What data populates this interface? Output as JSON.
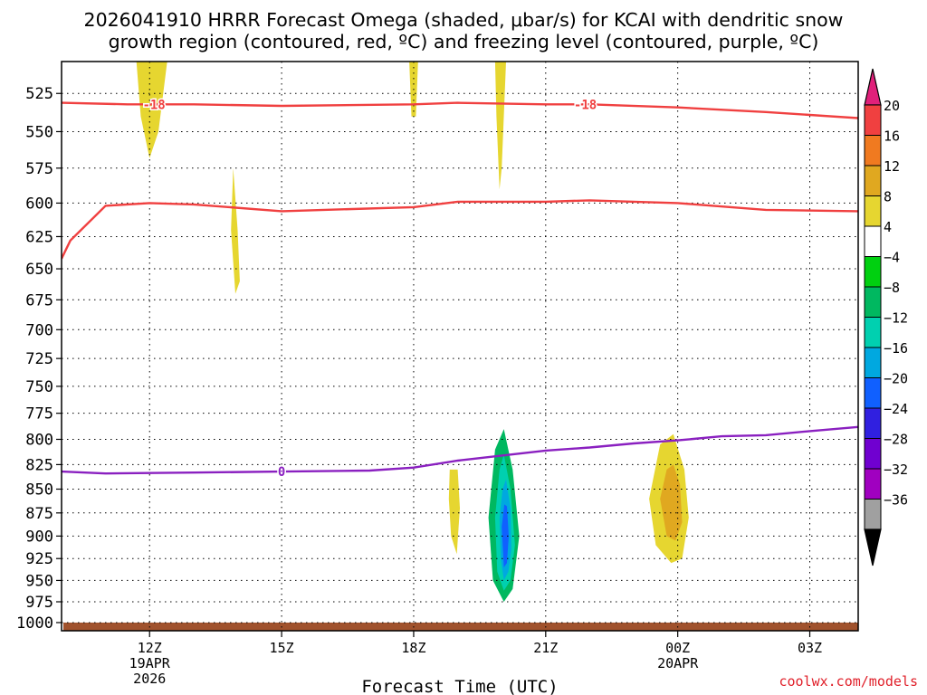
{
  "chart_data": {
    "type": "heatmap",
    "title": "2026041910 HRRR Forecast Omega (shaded, μbar/s) for KCAI with dendritic snow",
    "subtitle": "growth region (contoured, red, ºC) and freezing level (contoured, purple, ºC)",
    "xlabel": "Forecast Time (UTC)",
    "ylabel": "",
    "x_ticks": [
      {
        "hour": 12,
        "label": "12Z",
        "sub1": "19APR",
        "sub2": "2026"
      },
      {
        "hour": 15,
        "label": "15Z",
        "sub1": "",
        "sub2": ""
      },
      {
        "hour": 18,
        "label": "18Z",
        "sub1": "",
        "sub2": ""
      },
      {
        "hour": 21,
        "label": "21Z",
        "sub1": "",
        "sub2": ""
      },
      {
        "hour": 24,
        "label": "00Z",
        "sub1": "20APR",
        "sub2": ""
      },
      {
        "hour": 27,
        "label": "03Z",
        "sub1": "",
        "sub2": ""
      }
    ],
    "xlim": [
      10,
      28.1
    ],
    "y_ticks": [
      525,
      550,
      575,
      600,
      625,
      650,
      675,
      700,
      725,
      750,
      775,
      800,
      825,
      850,
      875,
      900,
      925,
      950,
      975,
      1000
    ],
    "ylim_hpa": [
      505,
      1010
    ],
    "colorbar": {
      "levels": [
        -36,
        -32,
        -28,
        -24,
        -20,
        -16,
        -12,
        -8,
        -4,
        4,
        8,
        12,
        16,
        20
      ],
      "colors": [
        "#a0a0a0",
        "#a000c0",
        "#7000d0",
        "#3020e0",
        "#1060ff",
        "#00a8e0",
        "#00d0b0",
        "#00b860",
        "#00d010",
        "#ffffff",
        "#e6d630",
        "#e0a820",
        "#f07a20",
        "#f04040",
        "#e0207a"
      ],
      "under_color": "#000000",
      "over_color": "#e0207a"
    },
    "dgz_contours": [
      {
        "name": "-18 C",
        "color": "#f04040",
        "label": "-18",
        "points": [
          [
            10,
            531
          ],
          [
            11.5,
            532
          ],
          [
            13,
            532
          ],
          [
            15,
            533
          ],
          [
            18,
            532
          ],
          [
            19,
            531
          ],
          [
            21,
            532
          ],
          [
            22,
            532
          ],
          [
            24,
            534
          ],
          [
            26,
            537
          ],
          [
            28.1,
            541
          ]
        ]
      },
      {
        "name": "-12 C",
        "color": "#f04040",
        "label": "",
        "points": [
          [
            10,
            642
          ],
          [
            10.2,
            628
          ],
          [
            11.0,
            602
          ],
          [
            12,
            600
          ],
          [
            13,
            601
          ],
          [
            15,
            606
          ],
          [
            18,
            603
          ],
          [
            19,
            599
          ],
          [
            21,
            599
          ],
          [
            22,
            598
          ],
          [
            24,
            600
          ],
          [
            26,
            605
          ],
          [
            28.1,
            606
          ]
        ]
      }
    ],
    "freezing_level": {
      "name": "0 C",
      "color": "#8a20c0",
      "label": "0",
      "points": [
        [
          10,
          832
        ],
        [
          11,
          834
        ],
        [
          13,
          833
        ],
        [
          15,
          832
        ],
        [
          17,
          831
        ],
        [
          18,
          828
        ],
        [
          19,
          821
        ],
        [
          20,
          816
        ],
        [
          21,
          811
        ],
        [
          22,
          808
        ],
        [
          23,
          804
        ],
        [
          24,
          801
        ],
        [
          25,
          797
        ],
        [
          26,
          796
        ],
        [
          27,
          792
        ],
        [
          28.1,
          788
        ]
      ]
    },
    "omega_regions": [
      {
        "name": "yellow-12Z-upper",
        "level": 4,
        "points": [
          [
            11.2,
            505
          ],
          [
            13.6,
            505
          ],
          [
            13.0,
            570
          ],
          [
            12.5,
            630
          ],
          [
            12.0,
            640
          ],
          [
            11.4,
            580
          ]
        ]
      },
      {
        "name": "orange-12Z-upper",
        "level": 8,
        "points": [
          [
            11.7,
            505
          ],
          [
            12.4,
            505
          ],
          [
            12.2,
            550
          ],
          [
            12.0,
            568
          ],
          [
            11.8,
            540
          ]
        ]
      },
      {
        "name": "yellow-13Z-column",
        "level": 4,
        "points": [
          [
            13.5,
            505
          ],
          [
            15.0,
            505
          ],
          [
            14.7,
            600
          ],
          [
            14.4,
            690
          ],
          [
            14.0,
            738
          ],
          [
            13.8,
            710
          ],
          [
            13.6,
            640
          ]
        ]
      },
      {
        "name": "orange-14Z-streak",
        "level": 8,
        "points": [
          [
            13.9,
            575
          ],
          [
            14.0,
            620
          ],
          [
            14.05,
            660
          ],
          [
            13.95,
            670
          ],
          [
            13.85,
            620
          ]
        ]
      },
      {
        "name": "yellow-18Z-column",
        "level": 4,
        "points": [
          [
            17.3,
            505
          ],
          [
            18.4,
            505
          ],
          [
            18.3,
            580
          ],
          [
            18.0,
            650
          ],
          [
            17.5,
            620
          ]
        ]
      },
      {
        "name": "orange-18Z-streak",
        "level": 8,
        "points": [
          [
            17.9,
            505
          ],
          [
            18.1,
            505
          ],
          [
            18.05,
            540
          ],
          [
            17.95,
            540
          ]
        ]
      },
      {
        "name": "green-19Z-streak",
        "level": -4,
        "points": [
          [
            18.93,
            505
          ],
          [
            19.07,
            505
          ],
          [
            19.06,
            600
          ],
          [
            19.0,
            668
          ],
          [
            18.94,
            600
          ]
        ]
      },
      {
        "name": "yellow-20Z-column",
        "level": 4,
        "points": [
          [
            19.6,
            505
          ],
          [
            21.1,
            505
          ],
          [
            21.1,
            520
          ],
          [
            21.05,
            570
          ],
          [
            20.9,
            640
          ],
          [
            20.5,
            690
          ],
          [
            20.1,
            700
          ],
          [
            19.8,
            650
          ],
          [
            19.7,
            580
          ]
        ]
      },
      {
        "name": "orange-20Z-streak",
        "level": 8,
        "points": [
          [
            19.85,
            505
          ],
          [
            20.1,
            505
          ],
          [
            20.0,
            575
          ],
          [
            19.95,
            590
          ],
          [
            19.88,
            540
          ]
        ]
      },
      {
        "name": "yellow-22Z-column",
        "level": 4,
        "points": [
          [
            21.1,
            505
          ],
          [
            25.2,
            505
          ],
          [
            25.0,
            560
          ],
          [
            24.7,
            590
          ],
          [
            23.8,
            600
          ],
          [
            23.0,
            610
          ],
          [
            22.2,
            635
          ],
          [
            21.6,
            665
          ],
          [
            21.5,
            685
          ],
          [
            21.2,
            650
          ]
        ]
      },
      {
        "name": "yellow-right-large",
        "level": 4,
        "points": [
          [
            25.0,
            505
          ],
          [
            26.2,
            505
          ],
          [
            27.2,
            560
          ],
          [
            27.8,
            575
          ],
          [
            28.1,
            570
          ],
          [
            28.1,
            835
          ],
          [
            27.6,
            830
          ],
          [
            27.2,
            795
          ],
          [
            26.9,
            760
          ],
          [
            26.6,
            720
          ],
          [
            26.0,
            680
          ],
          [
            25.5,
            660
          ],
          [
            25.2,
            620
          ],
          [
            25.1,
            560
          ]
        ]
      },
      {
        "name": "yellow-19Z-lower",
        "level": 4,
        "points": [
          [
            18.6,
            790
          ],
          [
            19.2,
            790
          ],
          [
            19.3,
            840
          ],
          [
            19.2,
            920
          ],
          [
            19.0,
            990
          ],
          [
            18.7,
            960
          ],
          [
            18.5,
            880
          ],
          [
            18.4,
            820
          ]
        ]
      },
      {
        "name": "orange-19Z-lower",
        "level": 8,
        "points": [
          [
            18.82,
            830
          ],
          [
            19.0,
            830
          ],
          [
            19.05,
            870
          ],
          [
            18.98,
            920
          ],
          [
            18.85,
            900
          ],
          [
            18.8,
            860
          ]
        ]
      },
      {
        "name": "yellow-20Z-lower",
        "level": 4,
        "points": [
          [
            19.3,
            880
          ],
          [
            19.6,
            790
          ],
          [
            20.1,
            752
          ],
          [
            20.5,
            790
          ],
          [
            20.85,
            870
          ],
          [
            20.8,
            970
          ],
          [
            20.3,
            1000
          ],
          [
            19.7,
            995
          ],
          [
            19.4,
            950
          ]
        ]
      },
      {
        "name": "green-20Z-lower",
        "level": -4,
        "points": [
          [
            19.5,
            900
          ],
          [
            19.7,
            790
          ],
          [
            20.0,
            752
          ],
          [
            20.3,
            790
          ],
          [
            20.6,
            870
          ],
          [
            20.5,
            950
          ],
          [
            20.15,
            1000
          ],
          [
            19.8,
            995
          ],
          [
            19.55,
            950
          ]
        ]
      },
      {
        "name": "teal-20Z-lower",
        "level": -12,
        "points": [
          [
            19.7,
            880
          ],
          [
            19.85,
            810
          ],
          [
            20.05,
            790
          ],
          [
            20.25,
            830
          ],
          [
            20.4,
            900
          ],
          [
            20.25,
            960
          ],
          [
            20.05,
            975
          ],
          [
            19.8,
            950
          ]
        ]
      },
      {
        "name": "cyan-20Z-lower",
        "level": -16,
        "points": [
          [
            19.85,
            880
          ],
          [
            19.95,
            830
          ],
          [
            20.05,
            815
          ],
          [
            20.2,
            850
          ],
          [
            20.3,
            910
          ],
          [
            20.2,
            950
          ],
          [
            20.05,
            962
          ],
          [
            19.9,
            940
          ]
        ]
      },
      {
        "name": "lightblue-20Z-lower",
        "level": -20,
        "points": [
          [
            19.95,
            880
          ],
          [
            20.02,
            850
          ],
          [
            20.1,
            840
          ],
          [
            20.2,
            870
          ],
          [
            20.22,
            915
          ],
          [
            20.15,
            940
          ],
          [
            20.05,
            950
          ],
          [
            19.98,
            925
          ]
        ]
      },
      {
        "name": "blue-20Z-lower",
        "level": -24,
        "points": [
          [
            20.0,
            890
          ],
          [
            20.06,
            866
          ],
          [
            20.12,
            868
          ],
          [
            20.16,
            900
          ],
          [
            20.12,
            930
          ],
          [
            20.05,
            935
          ]
        ]
      },
      {
        "name": "yellow-21Z-thin",
        "level": 4,
        "points": [
          [
            20.94,
            790
          ],
          [
            21.06,
            790
          ],
          [
            21.1,
            850
          ],
          [
            21.05,
            910
          ],
          [
            20.96,
            910
          ],
          [
            20.92,
            850
          ]
        ]
      },
      {
        "name": "green-22Z",
        "level": -4,
        "points": [
          [
            21.7,
            850
          ],
          [
            21.8,
            790
          ],
          [
            22.0,
            770
          ],
          [
            22.25,
            800
          ],
          [
            22.4,
            880
          ],
          [
            22.3,
            945
          ],
          [
            22.0,
            975
          ],
          [
            21.75,
            950
          ]
        ]
      },
      {
        "name": "yellow-00Z-lower",
        "level": 4,
        "points": [
          [
            22.9,
            850
          ],
          [
            23.2,
            790
          ],
          [
            23.8,
            760
          ],
          [
            24.3,
            780
          ],
          [
            24.5,
            850
          ],
          [
            24.4,
            930
          ],
          [
            24.0,
            960
          ],
          [
            23.4,
            955
          ],
          [
            23.0,
            920
          ]
        ]
      },
      {
        "name": "orange-00Z-lower",
        "level": 8,
        "points": [
          [
            23.35,
            860
          ],
          [
            23.6,
            805
          ],
          [
            23.9,
            795
          ],
          [
            24.15,
            830
          ],
          [
            24.25,
            880
          ],
          [
            24.1,
            925
          ],
          [
            23.85,
            930
          ],
          [
            23.5,
            910
          ]
        ]
      },
      {
        "name": "darkorange-00Z-lower",
        "level": 12,
        "points": [
          [
            23.6,
            860
          ],
          [
            23.75,
            830
          ],
          [
            23.9,
            825
          ],
          [
            24.05,
            845
          ],
          [
            24.1,
            885
          ],
          [
            23.95,
            905
          ],
          [
            23.75,
            900
          ]
        ]
      },
      {
        "name": "green-01Z",
        "level": -4,
        "points": [
          [
            25.0,
            770
          ],
          [
            25.1,
            770
          ],
          [
            25.2,
            800
          ],
          [
            25.2,
            840
          ],
          [
            25.0,
            840
          ],
          [
            24.98,
            800
          ]
        ]
      },
      {
        "name": "green-02Z",
        "level": -4,
        "points": [
          [
            25.5,
            850
          ],
          [
            26.0,
            845
          ],
          [
            26.4,
            890
          ],
          [
            26.5,
            925
          ],
          [
            26.2,
            935
          ],
          [
            25.9,
            910
          ],
          [
            25.65,
            880
          ]
        ]
      },
      {
        "name": "green-03Z",
        "level": -4,
        "points": [
          [
            26.5,
            940
          ],
          [
            27.2,
            935
          ],
          [
            27.8,
            915
          ],
          [
            28.1,
            905
          ],
          [
            28.1,
            965
          ],
          [
            27.3,
            990
          ],
          [
            26.9,
            995
          ],
          [
            26.5,
            980
          ]
        ]
      }
    ],
    "terrain_color": "#a0522d",
    "credit": "coolwx.com/models"
  }
}
